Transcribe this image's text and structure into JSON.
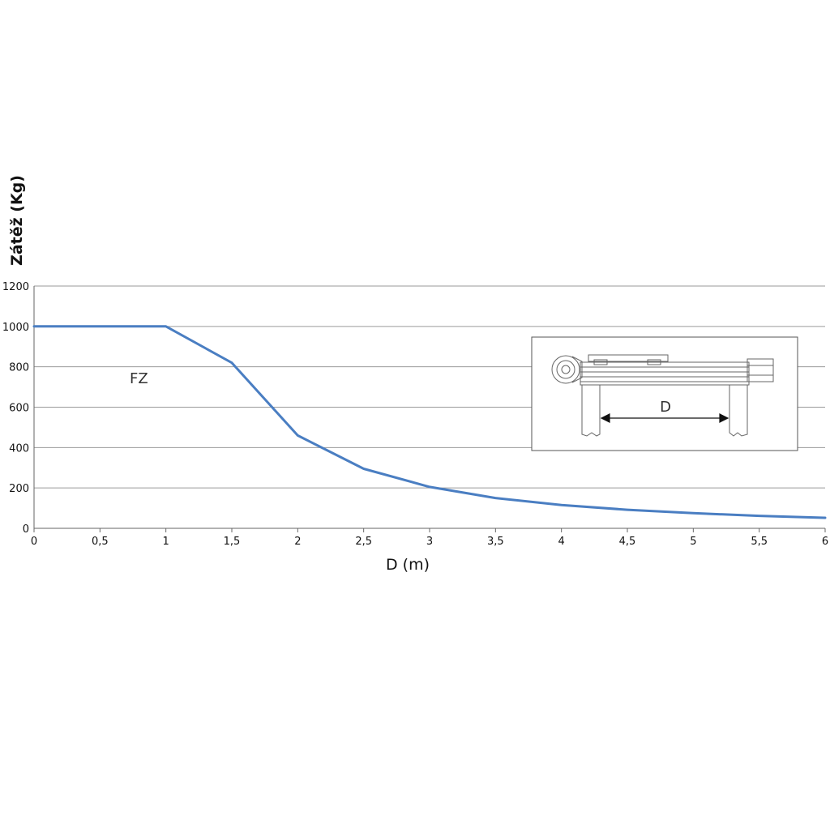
{
  "chart_data": {
    "type": "line",
    "title": "",
    "xlabel": "D (m)",
    "ylabel": "Zátěž (Kg)",
    "xlim": [
      0,
      6
    ],
    "ylim": [
      0,
      1200
    ],
    "x_ticks": [
      "0",
      "0,5",
      "1",
      "1,5",
      "2",
      "2,5",
      "3",
      "3,5",
      "4",
      "4,5",
      "5",
      "5,5",
      "6"
    ],
    "y_ticks": [
      "0",
      "200",
      "400",
      "600",
      "800",
      "1000",
      "1200"
    ],
    "grid": "horizontal",
    "series": [
      {
        "name": "FZ",
        "color": "#4a7ec2",
        "x": [
          0,
          0.5,
          1,
          1.5,
          2,
          2.5,
          3,
          3.5,
          4,
          4.5,
          5,
          5.5,
          6
        ],
        "y": [
          1000,
          1000,
          1000,
          820,
          460,
          295,
          205,
          150,
          115,
          92,
          75,
          62,
          52
        ]
      }
    ],
    "annotations": [
      "FZ"
    ],
    "inset": {
      "label": "D"
    }
  }
}
